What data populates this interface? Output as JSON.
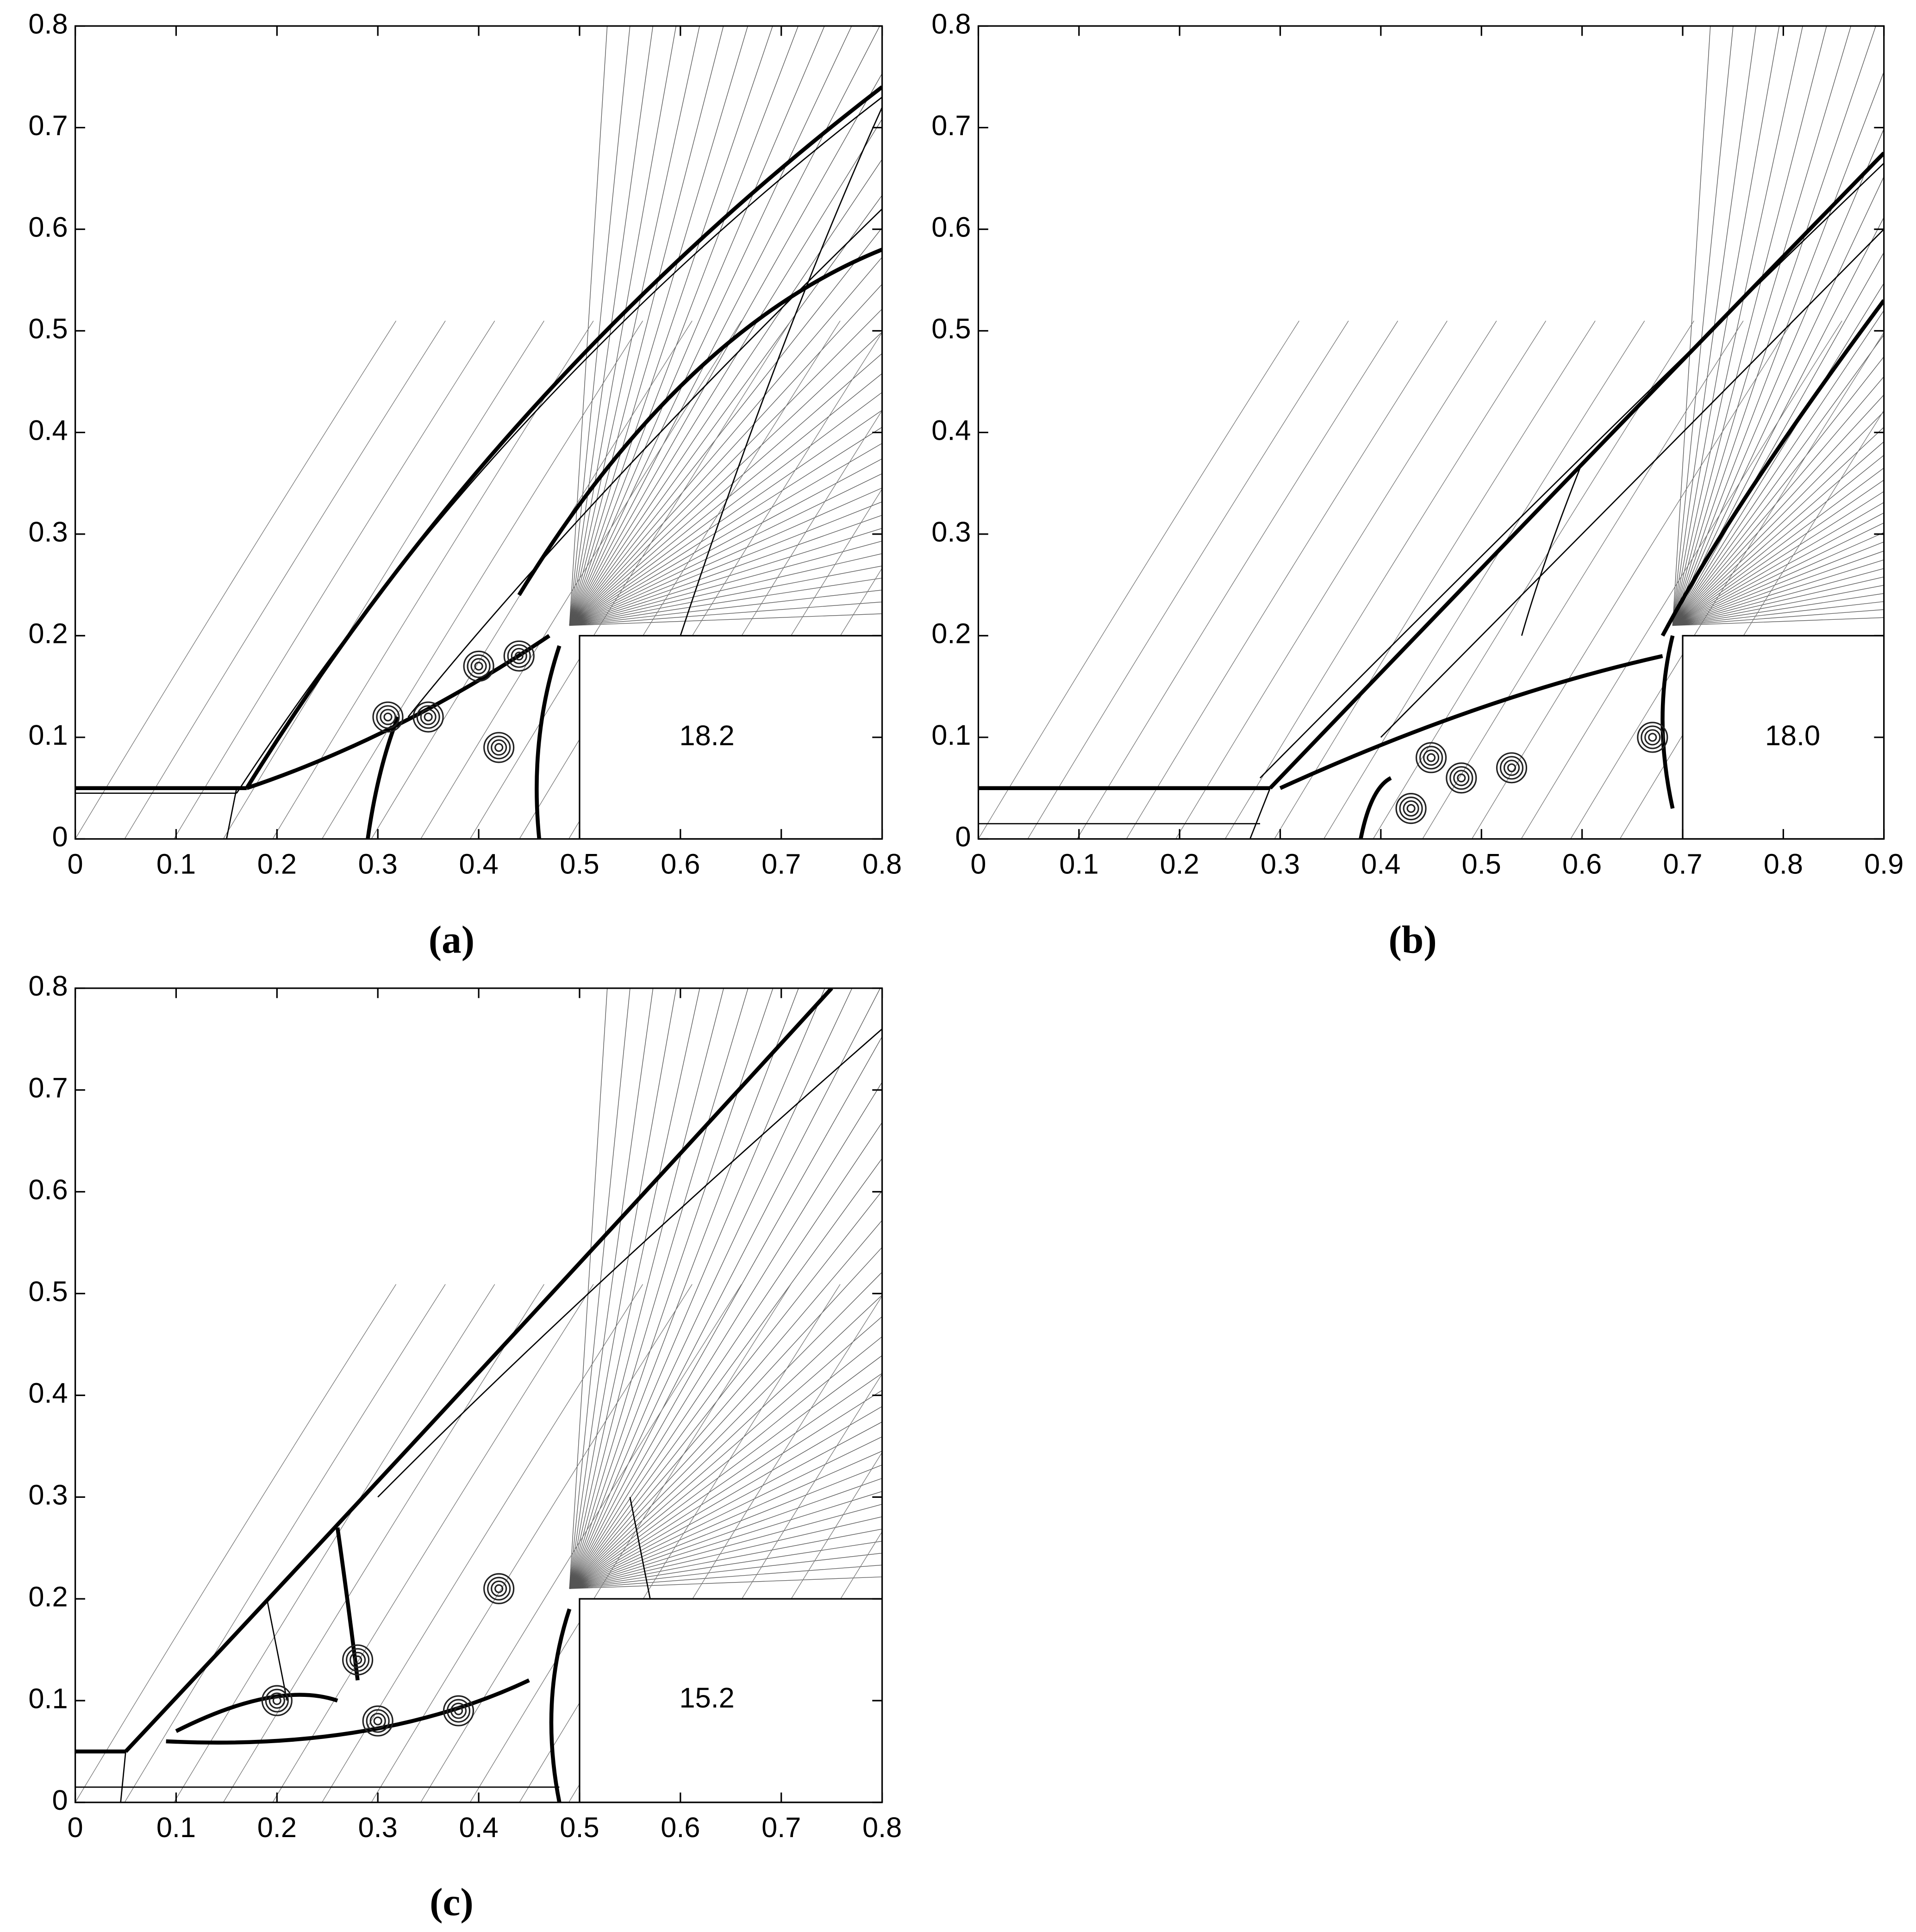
{
  "chart_data": [
    {
      "type": "contour",
      "label": "(a)",
      "annotation": "18.2",
      "xlim": [
        0,
        0.8
      ],
      "ylim": [
        0,
        0.8
      ],
      "xticks": [
        0,
        0.1,
        0.2,
        0.3,
        0.4,
        0.5,
        0.6,
        0.7,
        0.8
      ],
      "yticks": [
        0,
        0.1,
        0.2,
        0.3,
        0.4,
        0.5,
        0.6,
        0.7,
        0.8
      ]
    },
    {
      "type": "contour",
      "label": "(b)",
      "annotation": "18.0",
      "xlim": [
        0,
        0.9
      ],
      "ylim": [
        0,
        0.8
      ],
      "xticks": [
        0,
        0.1,
        0.2,
        0.3,
        0.4,
        0.5,
        0.6,
        0.7,
        0.8,
        0.9
      ],
      "yticks": [
        0,
        0.1,
        0.2,
        0.3,
        0.4,
        0.5,
        0.6,
        0.7,
        0.8
      ]
    },
    {
      "type": "contour",
      "label": "(c)",
      "annotation": "15.2",
      "xlim": [
        0,
        0.8
      ],
      "ylim": [
        0,
        0.8
      ],
      "xticks": [
        0,
        0.1,
        0.2,
        0.3,
        0.4,
        0.5,
        0.6,
        0.7,
        0.8
      ],
      "yticks": [
        0,
        0.1,
        0.2,
        0.3,
        0.4,
        0.5,
        0.6,
        0.7,
        0.8
      ]
    }
  ]
}
